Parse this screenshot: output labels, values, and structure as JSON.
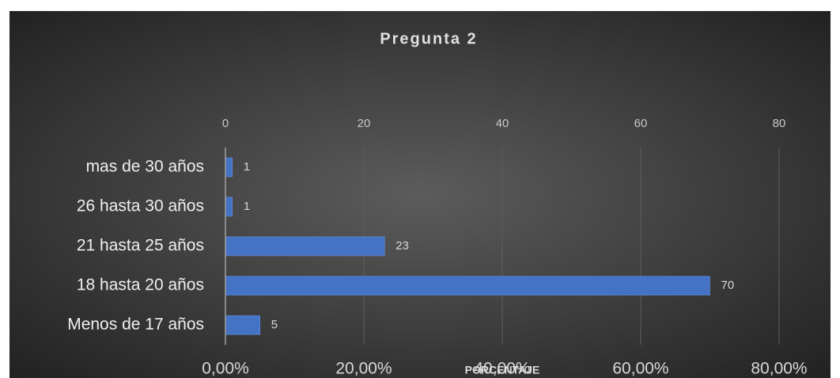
{
  "chart_data": {
    "type": "bar",
    "orientation": "horizontal",
    "title": "Pregunta 2",
    "x2_axis_label": "PORCENTAJE",
    "categories": [
      "mas de 30 años",
      "26 hasta 30 años",
      "21 hasta 25 años",
      "18 hasta 20 años",
      "Menos de 17 años"
    ],
    "values": [
      1,
      1,
      23,
      70,
      5
    ],
    "color": "#4472c4",
    "xlim": [
      0,
      80
    ],
    "xticks": [
      0,
      20,
      40,
      60,
      80
    ],
    "x2lim": [
      0,
      80
    ],
    "x2ticks": [
      {
        "value": 0,
        "label": "0,00%"
      },
      {
        "value": 20,
        "label": "20,00%"
      },
      {
        "value": 40,
        "label": "40,00%"
      },
      {
        "value": 60,
        "label": "60,00%"
      },
      {
        "value": 80,
        "label": "80,00%"
      }
    ],
    "grid": true
  }
}
